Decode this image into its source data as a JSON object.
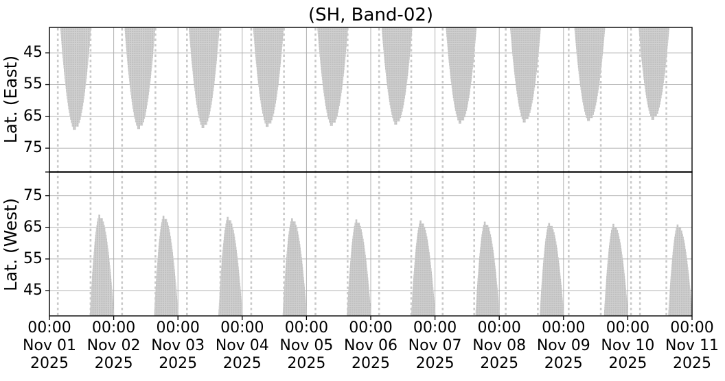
{
  "chart_data": {
    "type": "area",
    "title": "(SH, Band-02)",
    "x_axis": {
      "tick_time": "00:00",
      "tick_year": "2025",
      "tick_dates": [
        "Nov 01",
        "Nov 02",
        "Nov 03",
        "Nov 04",
        "Nov 05",
        "Nov 06",
        "Nov 07",
        "Nov 08",
        "Nov 09",
        "Nov 10",
        "Nov 11"
      ],
      "range_days": [
        0,
        10
      ],
      "grid": true
    },
    "lat_range": [
      37,
      82.5
    ],
    "panels": [
      {
        "id": "east",
        "ylabel": "Lat. (East)",
        "inverted": true,
        "yticks": [
          45,
          55,
          65,
          75
        ],
        "blob_half_width_days": 0.24,
        "blobs": [
          {
            "center_day": 0.41,
            "tip_lat": 69.3
          },
          {
            "center_day": 1.41,
            "tip_lat": 69.0
          },
          {
            "center_day": 2.41,
            "tip_lat": 68.7
          },
          {
            "center_day": 3.41,
            "tip_lat": 68.3
          },
          {
            "center_day": 4.41,
            "tip_lat": 68.0
          },
          {
            "center_day": 5.41,
            "tip_lat": 67.6
          },
          {
            "center_day": 6.41,
            "tip_lat": 67.3
          },
          {
            "center_day": 7.41,
            "tip_lat": 66.9
          },
          {
            "center_day": 8.41,
            "tip_lat": 66.5
          },
          {
            "center_day": 9.41,
            "tip_lat": 66.1
          }
        ]
      },
      {
        "id": "west",
        "ylabel": "Lat. (West)",
        "inverted": false,
        "yticks": [
          75,
          65,
          55,
          45
        ],
        "blob_left_width_days": 0.16,
        "blob_right_width_days": 0.22,
        "blobs": [
          {
            "peak_day": 0.79,
            "peak_lat": 69.0
          },
          {
            "peak_day": 1.79,
            "peak_lat": 68.7
          },
          {
            "peak_day": 2.79,
            "peak_lat": 68.3
          },
          {
            "peak_day": 3.79,
            "peak_lat": 67.9
          },
          {
            "peak_day": 4.79,
            "peak_lat": 67.5
          },
          {
            "peak_day": 5.79,
            "peak_lat": 67.2
          },
          {
            "peak_day": 6.79,
            "peak_lat": 66.8
          },
          {
            "peak_day": 7.79,
            "peak_lat": 66.4
          },
          {
            "peak_day": 8.79,
            "peak_lat": 66.1
          },
          {
            "peak_day": 9.79,
            "peak_lat": 65.9
          }
        ]
      }
    ],
    "stripe_days": [
      0.13,
      0.64,
      1.13,
      1.65,
      2.14,
      2.66,
      3.14,
      3.65,
      4.14,
      4.64,
      5.13,
      5.63,
      6.12,
      6.61,
      7.1,
      7.6,
      8.08,
      8.58,
      9.05,
      9.19,
      9.6
    ],
    "colors": {
      "blob": "#c0c0c0",
      "blob_texture": "#d1d1d1",
      "grid": "#b0b0b0",
      "stripe": "#c9c9c9",
      "axis": "#000000",
      "background": "#ffffff",
      "text": "#000000"
    }
  }
}
